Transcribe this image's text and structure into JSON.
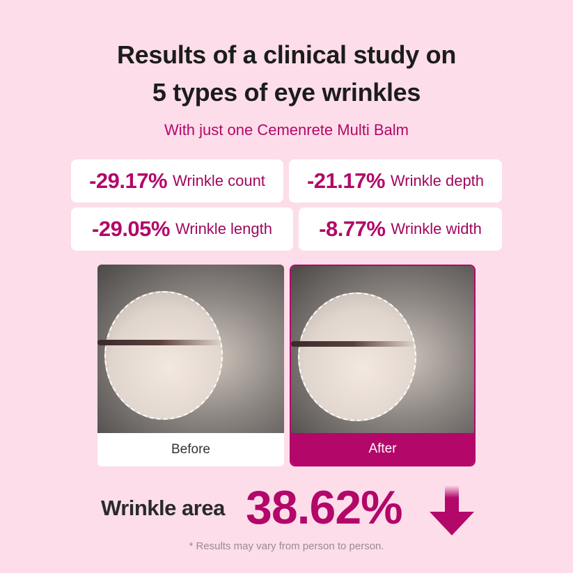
{
  "title_lines": [
    "Results of a clinical study on",
    "5 types of eye wrinkles"
  ],
  "subtitle": "With just one Cemenrete Multi Balm",
  "stats": [
    {
      "value": "-29.17%",
      "label": "Wrinkle count"
    },
    {
      "value": "-21.17%",
      "label": "Wrinkle depth"
    },
    {
      "value": "-29.05%",
      "label": "Wrinkle length"
    },
    {
      "value": "-8.77%",
      "label": "Wrinkle width"
    }
  ],
  "comparison": {
    "before_label": "Before",
    "after_label": "After"
  },
  "highlight": {
    "label": "Wrinkle area",
    "value": "38.62%",
    "icon": "arrow-down-icon"
  },
  "disclaimer": "* Results may vary from person to person.",
  "colors": {
    "background": "#fcdde9",
    "accent": "#b3076a"
  }
}
